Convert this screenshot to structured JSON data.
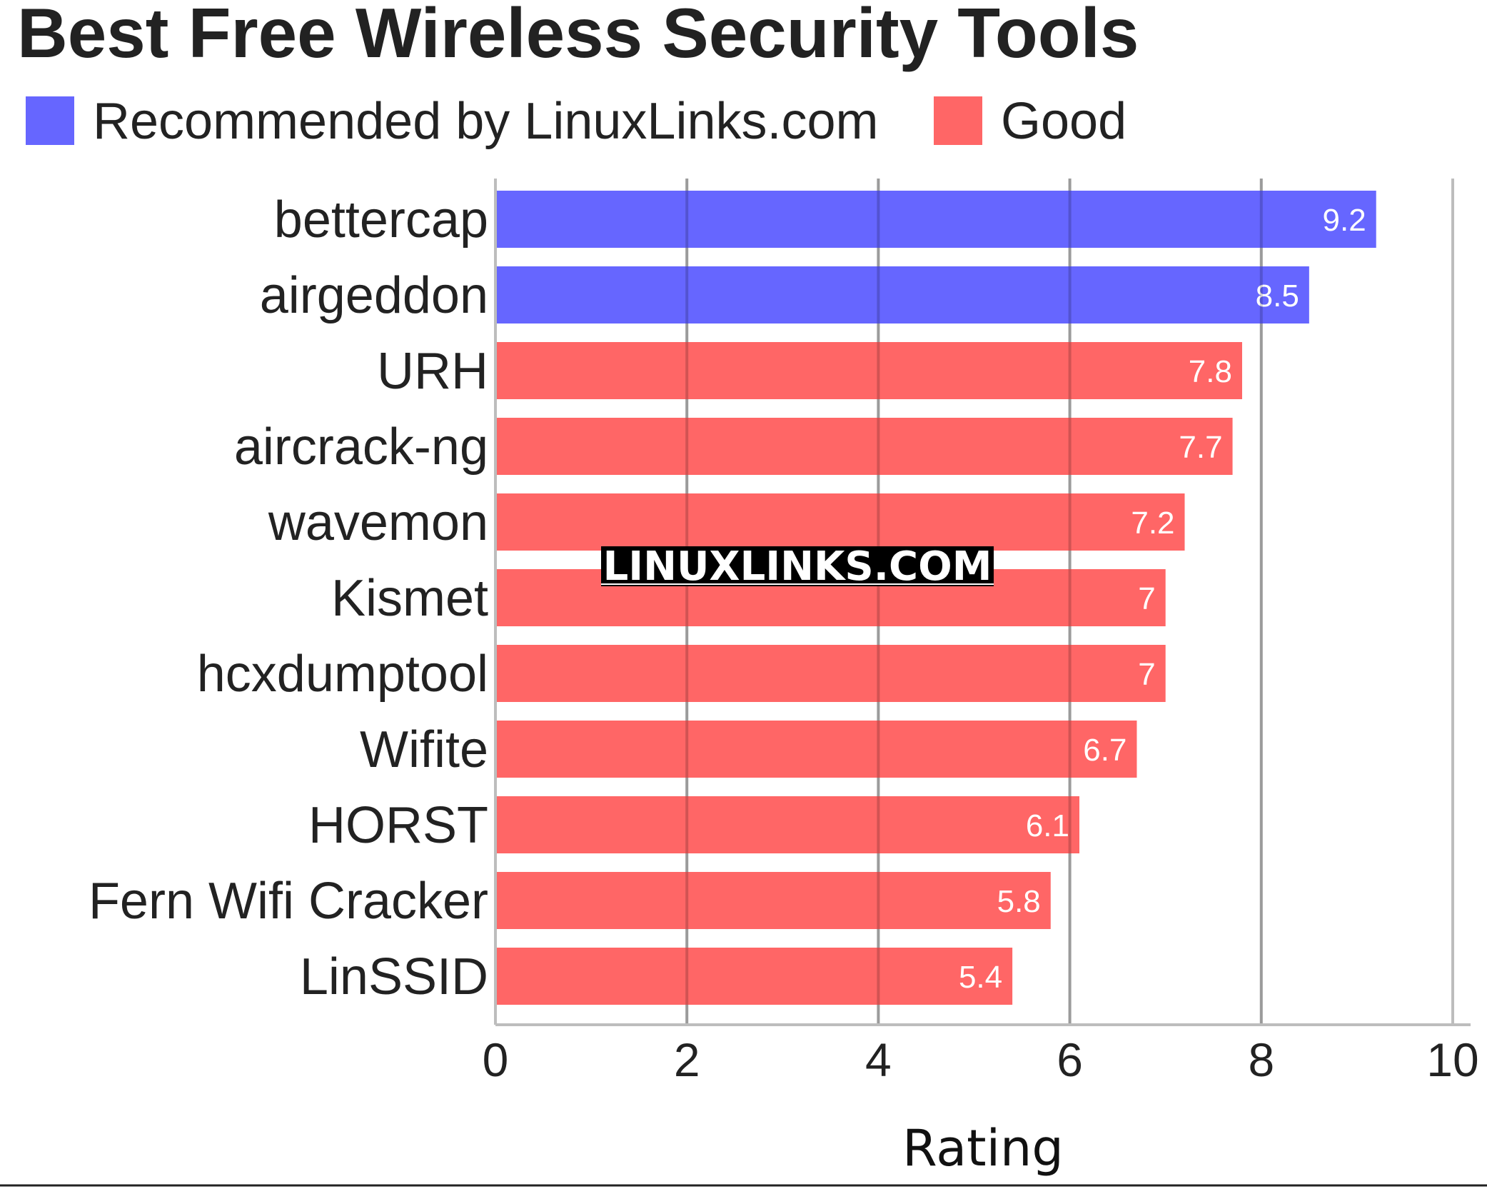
{
  "chart_data": {
    "type": "bar",
    "orientation": "horizontal",
    "title": "Best Free Wireless Security Tools",
    "xlabel": "Rating",
    "ylabel": "",
    "xlim": [
      0,
      10
    ],
    "x_ticks": [
      0,
      2,
      4,
      6,
      8,
      10
    ],
    "grid": "vertical",
    "legend_position": "top-left",
    "legend": [
      {
        "label": "Recommended by LinuxLinks.com",
        "color": "#6666ff"
      },
      {
        "label": "Good",
        "color": "#ff6666"
      }
    ],
    "categories": [
      "bettercap",
      "airgeddon",
      "URH",
      "aircrack-ng",
      "wavemon",
      "Kismet",
      "hcxdumptool",
      "Wifite",
      "HORST",
      "Fern Wifi Cracker",
      "LinSSID"
    ],
    "values": [
      9.2,
      8.5,
      7.8,
      7.7,
      7.2,
      7,
      7,
      6.7,
      6.1,
      5.8,
      5.4
    ],
    "value_labels": [
      "9.2",
      "8.5",
      "7.8",
      "7.7",
      "7.2",
      "7",
      "7",
      "6.7",
      "6.1",
      "5.8",
      "5.4"
    ],
    "groups": [
      "Recommended by LinuxLinks.com",
      "Recommended by LinuxLinks.com",
      "Good",
      "Good",
      "Good",
      "Good",
      "Good",
      "Good",
      "Good",
      "Good",
      "Good"
    ]
  },
  "watermark": "LINUXLINKS.COM"
}
